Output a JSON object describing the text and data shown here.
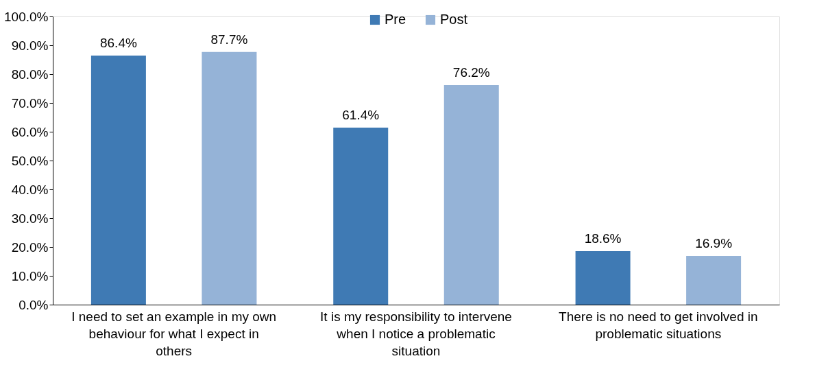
{
  "chart_data": {
    "type": "bar",
    "categories": [
      "I need to set an example in my own behaviour for what I expect in others",
      "It is my responsibility to intervene when I notice a problematic situation",
      "There is no need to get involved in problematic situations"
    ],
    "series": [
      {
        "name": "Pre",
        "color": "#3f7ab4",
        "values": [
          86.4,
          61.4,
          18.6
        ],
        "value_labels": [
          "86.4%",
          "61.4%",
          "18.6%"
        ]
      },
      {
        "name": "Post",
        "color": "#95b3d7",
        "values": [
          87.7,
          76.2,
          16.9
        ],
        "value_labels": [
          "87.7%",
          "76.2%",
          "16.9%"
        ]
      }
    ],
    "ylim": [
      0,
      100
    ],
    "yticks": [
      {
        "value": 0,
        "label": "0.0%"
      },
      {
        "value": 10,
        "label": "10.0%"
      },
      {
        "value": 20,
        "label": "20.0%"
      },
      {
        "value": 30,
        "label": "30.0%"
      },
      {
        "value": 40,
        "label": "40.0%"
      },
      {
        "value": 50,
        "label": "50.0%"
      },
      {
        "value": 60,
        "label": "60.0%"
      },
      {
        "value": 70,
        "label": "70.0%"
      },
      {
        "value": 80,
        "label": "80.0%"
      },
      {
        "value": 90,
        "label": "90.0%"
      },
      {
        "value": 100,
        "label": "100.0%"
      }
    ],
    "grid": false,
    "legend": "top"
  }
}
